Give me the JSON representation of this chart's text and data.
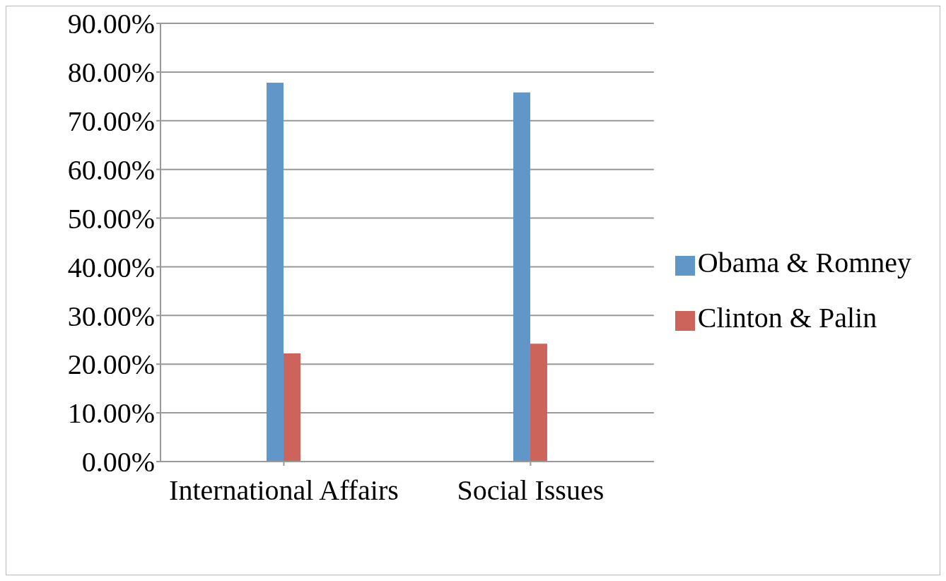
{
  "chart_data": {
    "type": "bar",
    "categories": [
      "International Affairs",
      "Social Issues"
    ],
    "series": [
      {
        "name": "Obama & Romney",
        "color": "#6096c8",
        "values": [
          77.8,
          75.8
        ]
      },
      {
        "name": "Clinton & Palin",
        "color": "#cc645c",
        "values": [
          22.2,
          24.2
        ]
      }
    ],
    "ylim": [
      0,
      90
    ],
    "yticks": [
      {
        "value": 0,
        "label": "0.00%"
      },
      {
        "value": 10,
        "label": "10.00%"
      },
      {
        "value": 20,
        "label": "20.00%"
      },
      {
        "value": 30,
        "label": "30.00%"
      },
      {
        "value": 40,
        "label": "40.00%"
      },
      {
        "value": 50,
        "label": "50.00%"
      },
      {
        "value": 60,
        "label": "60.00%"
      },
      {
        "value": 70,
        "label": "70.00%"
      },
      {
        "value": 80,
        "label": "80.00%"
      },
      {
        "value": 90,
        "label": "90.00%"
      }
    ],
    "grid": "y",
    "legend": "right"
  }
}
